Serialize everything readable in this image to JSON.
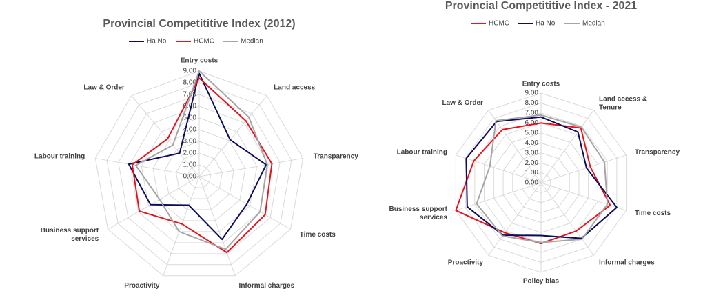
{
  "chart_data": [
    {
      "type": "radar",
      "title": "Provincial Competititive Index (2012)",
      "categories": [
        "Entry costs",
        "Land access",
        "Transparency",
        "Time costs",
        "Informal charges",
        "Proactivity",
        "Business support services",
        "Labour training",
        "Law & Order"
      ],
      "series": [
        {
          "name": "Ha Noi",
          "color": "#0c0c5a",
          "values": [
            8.8,
            4.1,
            5.8,
            4.7,
            5.7,
            2.6,
            4.8,
            6.1,
            2.6
          ]
        },
        {
          "name": "HCMC",
          "color": "#e8131b",
          "values": [
            8.4,
            6.2,
            6.3,
            6.5,
            6.9,
            4.3,
            5.9,
            5.8,
            4.2
          ]
        },
        {
          "name": "Median",
          "color": "#a5a5a5",
          "values": [
            9.0,
            6.6,
            5.9,
            6.0,
            6.6,
            5.0,
            3.9,
            5.5,
            3.5
          ]
        }
      ],
      "ylim": [
        0,
        9
      ],
      "yticks": [
        {
          "value": 0,
          "label": "0.00"
        },
        {
          "value": 1,
          "label": "1.00"
        },
        {
          "value": 2,
          "label": "2.00"
        },
        {
          "value": 3,
          "label": "3.00"
        },
        {
          "value": 4,
          "label": "4.00"
        },
        {
          "value": 5,
          "label": "5.00"
        },
        {
          "value": 6,
          "label": "6.00"
        },
        {
          "value": 7,
          "label": "7.00"
        },
        {
          "value": 8,
          "label": "8.00"
        },
        {
          "value": 9,
          "label": "9.00"
        }
      ],
      "grid": true
    },
    {
      "type": "radar",
      "title": "Provincial Competititive Index - 2021",
      "categories": [
        "Entry costs",
        "Land access & Tenure",
        "Transparency",
        "Time costs",
        "Informal charges",
        "Policy bias",
        "Proactivity",
        "Business support services",
        "Labour training",
        "Law & Order"
      ],
      "series": [
        {
          "name": "HCMC",
          "color": "#e8131b",
          "values": [
            6.0,
            6.8,
            5.2,
            7.3,
            6.0,
            6.1,
            6.2,
            9.0,
            7.1,
            6.6
          ]
        },
        {
          "name": "Ha Noi",
          "color": "#0c0c5a",
          "values": [
            6.6,
            6.3,
            4.8,
            8.0,
            6.9,
            5.3,
            6.5,
            7.8,
            7.9,
            7.6
          ]
        },
        {
          "name": "Median",
          "color": "#a5a5a5",
          "values": [
            6.8,
            6.9,
            6.7,
            7.0,
            7.0,
            6.0,
            6.6,
            6.8,
            5.4,
            7.7
          ]
        }
      ],
      "ylim": [
        0,
        9
      ],
      "yticks": [
        {
          "value": 0,
          "label": "0.00"
        },
        {
          "value": 1,
          "label": "1.00"
        },
        {
          "value": 2,
          "label": "2.00"
        },
        {
          "value": 3,
          "label": "3.00"
        },
        {
          "value": 4,
          "label": "4.00"
        },
        {
          "value": 5,
          "label": "5.00"
        },
        {
          "value": 6,
          "label": "6.00"
        },
        {
          "value": 7,
          "label": "7.00"
        },
        {
          "value": 8,
          "label": "8.00"
        },
        {
          "value": 9,
          "label": "9.00"
        }
      ],
      "grid": true
    }
  ]
}
